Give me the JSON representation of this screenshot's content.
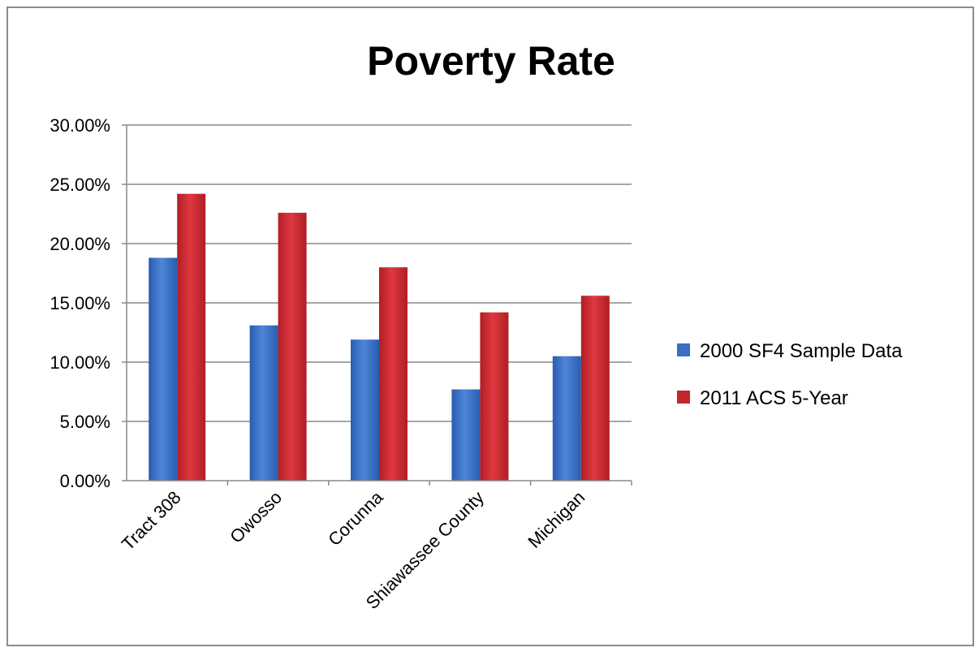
{
  "chart_data": {
    "type": "bar",
    "title": "Poverty Rate",
    "xlabel": "",
    "ylabel": "",
    "categories": [
      "Tract 308",
      "Owosso",
      "Corunna",
      "Shiawassee County",
      "Michigan"
    ],
    "series": [
      {
        "name": "2000 SF4 Sample Data",
        "color": "#3a6fc2",
        "values": [
          18.8,
          13.1,
          11.9,
          7.7,
          10.5
        ]
      },
      {
        "name": "2011 ACS 5-Year",
        "color": "#c4282e",
        "values": [
          24.2,
          22.6,
          18.0,
          14.2,
          15.6
        ]
      }
    ],
    "ylim": [
      0,
      30
    ],
    "yticks": [
      "0.00%",
      "5.00%",
      "10.00%",
      "15.00%",
      "20.00%",
      "25.00%",
      "30.00%"
    ],
    "grid": true,
    "legend_position": "right"
  }
}
